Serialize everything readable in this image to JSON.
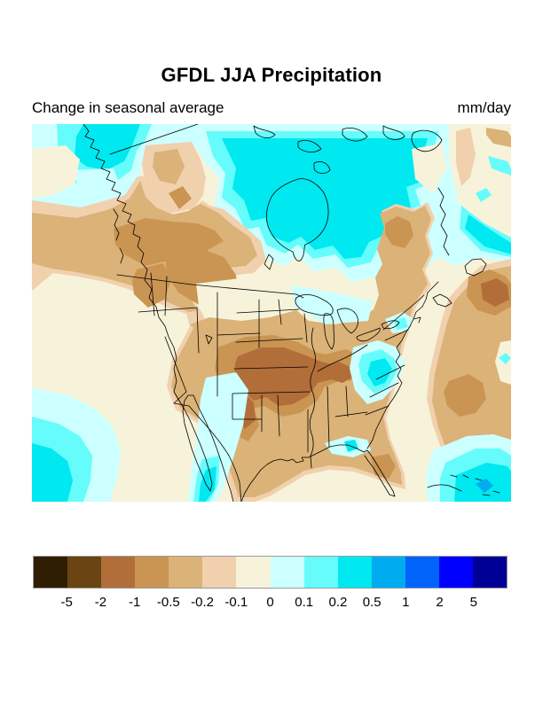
{
  "header": {
    "title": "GFDL JJA Precipitation",
    "subtitle": "Change in seasonal average",
    "units": "mm/day"
  },
  "chart_data": {
    "type": "heatmap",
    "subtype": "filled_contour_map",
    "region": "North America (United States, Canada, northern Mexico, adjacent oceans)",
    "title": "GFDL JJA Precipitation",
    "subtitle": "Change in seasonal average",
    "units": "mm/day",
    "legend_position": "bottom",
    "contour_levels": [
      -5,
      -2,
      -1,
      -0.5,
      -0.2,
      -0.1,
      0,
      0.1,
      0.2,
      0.5,
      1,
      2,
      5
    ],
    "legend_labels": [
      "-5",
      "-2",
      "-1",
      "-0.5",
      "-0.2",
      "-0.1",
      "0",
      "0.1",
      "0.2",
      "0.5",
      "1",
      "2",
      "5"
    ],
    "palette": [
      "#2f1e02",
      "#6a4513",
      "#b26e39",
      "#ca9452",
      "#dbb277",
      "#f1d0ae",
      "#f6f3da",
      "#ccffff",
      "#66fcfc",
      "#00e8f0",
      "#00acf0",
      "#0064fa",
      "#0000ff",
      "#000096"
    ],
    "palette_meaning": "brown = drying (negative change), blue = wetting (positive change)",
    "pattern_summary": [
      {
        "area": "Central Great Plains into Ohio/Kentucky valley",
        "change_mm_day": "-2 to -1 (strongest drying)"
      },
      {
        "area": "Rockies, Pacific Northwest and BC coast",
        "change_mm_day": "-1 to -0.5"
      },
      {
        "area": "Most of conterminous US, Mexico, Gulf of Mexico, western Atlantic",
        "change_mm_day": "-0.5 to -0.1"
      },
      {
        "area": "Hudson Bay and central/eastern Canada",
        "change_mm_day": "+0.2 to +0.5 (wetting)"
      },
      {
        "area": "Lake Winnipeg area spot",
        "change_mm_day": "+0.5 to +1"
      },
      {
        "area": "California/Nevada and Gulf of California",
        "change_mm_day": "0 to +0.1"
      },
      {
        "area": "Chesapeake Bay / Mid-Atlantic coast patch",
        "change_mm_day": "+0.2 to +0.5"
      },
      {
        "area": "Florida panhandle coast patch",
        "change_mm_day": "+0.2 to +0.5"
      },
      {
        "area": "Caribbean (bottom right) and subtropical Pacific (bottom left)",
        "change_mm_day": "+0.2 to +0.5"
      },
      {
        "area": "Atlantic offshore band east of Nova Scotia and southeast coast",
        "change_mm_day": "-2 to -0.5"
      }
    ]
  },
  "colorbar": {
    "cell_count": 14,
    "labels": [
      "-5",
      "-2",
      "-1",
      "-0.5",
      "-0.2",
      "-0.1",
      "0",
      "0.1",
      "0.2",
      "0.5",
      "1",
      "2",
      "5"
    ]
  }
}
